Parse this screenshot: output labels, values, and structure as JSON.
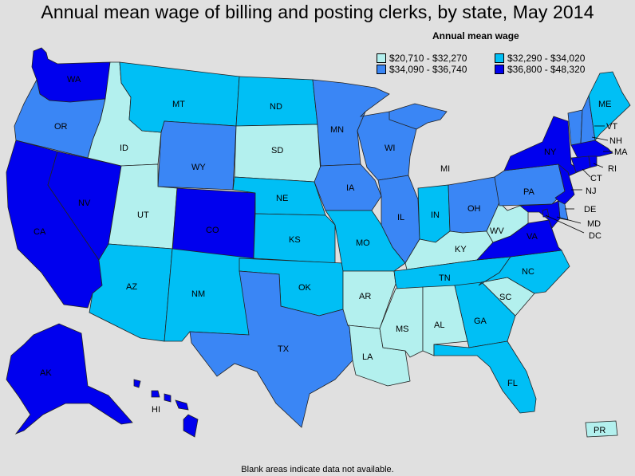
{
  "title": "Annual mean wage of billing and posting clerks, by state, May 2014",
  "legend": {
    "title": "Annual mean wage",
    "bins": [
      {
        "label": "$20,710 - $32,270",
        "color": "#b3f0ee"
      },
      {
        "label": "$32,290 - $34,020",
        "color": "#00bff5"
      },
      {
        "label": "$34,090 - $36,740",
        "color": "#3a86f5"
      },
      {
        "label": "$36,800 - $48,320",
        "color": "#0000ee"
      }
    ]
  },
  "footnote": "Blank areas indicate data not available.",
  "states": {
    "WA": {
      "label": "WA",
      "bin": 3
    },
    "OR": {
      "label": "OR",
      "bin": 2
    },
    "CA": {
      "label": "CA",
      "bin": 3
    },
    "NV": {
      "label": "NV",
      "bin": 3
    },
    "ID": {
      "label": "ID",
      "bin": 0
    },
    "MT": {
      "label": "MT",
      "bin": 1
    },
    "WY": {
      "label": "WY",
      "bin": 2
    },
    "UT": {
      "label": "UT",
      "bin": 0
    },
    "AZ": {
      "label": "AZ",
      "bin": 1
    },
    "CO": {
      "label": "CO",
      "bin": 3
    },
    "NM": {
      "label": "NM",
      "bin": 1
    },
    "ND": {
      "label": "ND",
      "bin": 1
    },
    "SD": {
      "label": "SD",
      "bin": 0
    },
    "NE": {
      "label": "NE",
      "bin": 1
    },
    "KS": {
      "label": "KS",
      "bin": 1
    },
    "OK": {
      "label": "OK",
      "bin": 1
    },
    "TX": {
      "label": "TX",
      "bin": 2
    },
    "MN": {
      "label": "MN",
      "bin": 2
    },
    "IA": {
      "label": "IA",
      "bin": 2
    },
    "MO": {
      "label": "MO",
      "bin": 1
    },
    "AR": {
      "label": "AR",
      "bin": 0
    },
    "LA": {
      "label": "LA",
      "bin": 0
    },
    "WI": {
      "label": "WI",
      "bin": 2
    },
    "IL": {
      "label": "IL",
      "bin": 2
    },
    "MI": {
      "label": "MI",
      "bin": 2
    },
    "IN": {
      "label": "IN",
      "bin": 1
    },
    "OH": {
      "label": "OH",
      "bin": 2
    },
    "KY": {
      "label": "KY",
      "bin": 0
    },
    "TN": {
      "label": "TN",
      "bin": 1
    },
    "MS": {
      "label": "MS",
      "bin": 0
    },
    "AL": {
      "label": "AL",
      "bin": 0
    },
    "GA": {
      "label": "GA",
      "bin": 1
    },
    "FL": {
      "label": "FL",
      "bin": 1
    },
    "SC": {
      "label": "SC",
      "bin": 0
    },
    "NC": {
      "label": "NC",
      "bin": 1
    },
    "VA": {
      "label": "VA",
      "bin": 3
    },
    "WV": {
      "label": "WV",
      "bin": 0
    },
    "PA": {
      "label": "PA",
      "bin": 2
    },
    "NY": {
      "label": "NY",
      "bin": 3
    },
    "ME": {
      "label": "ME",
      "bin": 1
    },
    "VT": {
      "label": "VT",
      "bin": 2
    },
    "NH": {
      "label": "NH",
      "bin": 2
    },
    "MA": {
      "label": "MA",
      "bin": 3
    },
    "RI": {
      "label": "RI",
      "bin": 3
    },
    "CT": {
      "label": "CT",
      "bin": 3
    },
    "NJ": {
      "label": "NJ",
      "bin": 3
    },
    "DE": {
      "label": "DE",
      "bin": 2
    },
    "MD": {
      "label": "MD",
      "bin": 3
    },
    "DC": {
      "label": "DC",
      "bin": 3
    },
    "AK": {
      "label": "AK",
      "bin": 3
    },
    "HI": {
      "label": "HI",
      "bin": 3
    },
    "PR": {
      "label": "PR",
      "bin": 0
    }
  }
}
